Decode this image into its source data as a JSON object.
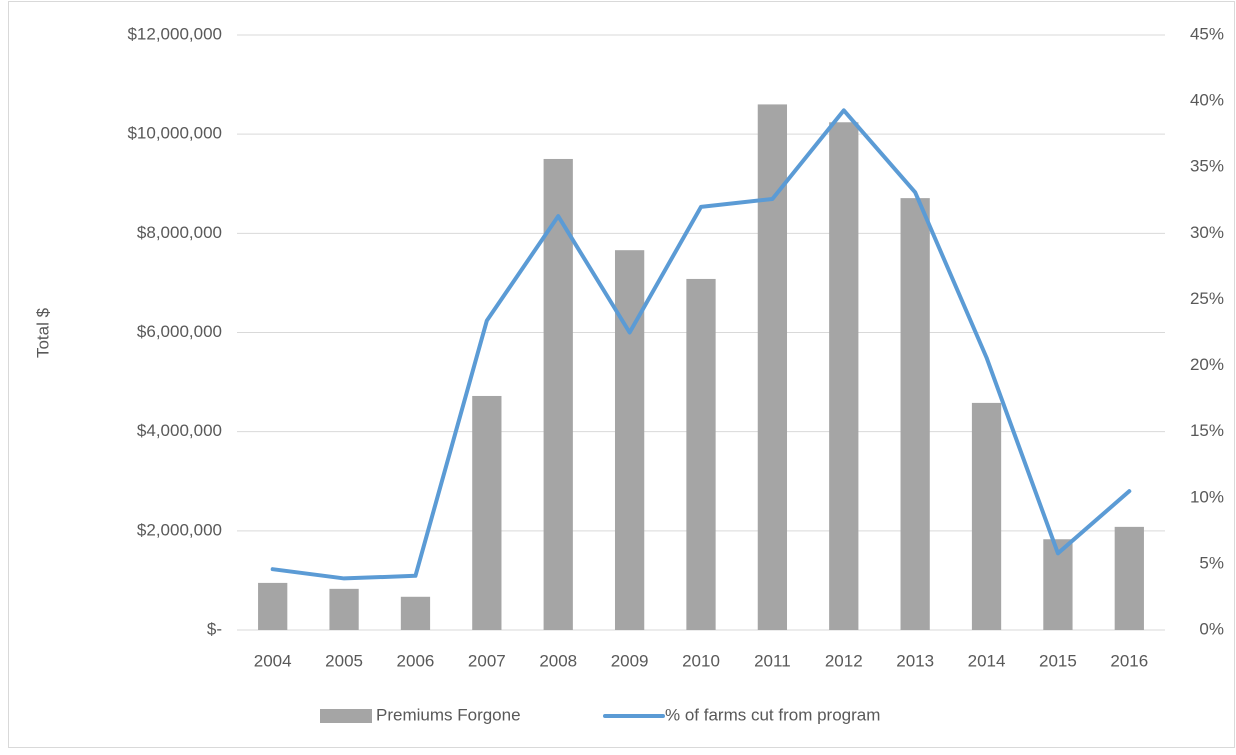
{
  "chart_data": {
    "type": "bar-line",
    "y_axis_label": "Total $",
    "categories": [
      "2004",
      "2005",
      "2006",
      "2007",
      "2008",
      "2009",
      "2010",
      "2011",
      "2012",
      "2013",
      "2014",
      "2015",
      "2016"
    ],
    "series": [
      {
        "name": "Premiums Forgone",
        "type": "bar",
        "color": "#a5a5a5",
        "values": [
          950000,
          830000,
          670000,
          4720000,
          9500000,
          7660000,
          7080000,
          10600000,
          10240000,
          8710000,
          4580000,
          1830000,
          2080000
        ]
      },
      {
        "name": "% of farms cut from program",
        "type": "line",
        "axis": "y2",
        "color": "#5b9bd5",
        "values": [
          4.6,
          3.9,
          4.1,
          23.4,
          31.3,
          22.5,
          32.0,
          32.6,
          39.3,
          33.1,
          20.6,
          5.8,
          10.5
        ]
      }
    ],
    "ylim": [
      0,
      12000000
    ],
    "yticks": [
      {
        "value": 0,
        "label": "$-"
      },
      {
        "value": 2000000,
        "label": "$2,000,000"
      },
      {
        "value": 4000000,
        "label": "$4,000,000"
      },
      {
        "value": 6000000,
        "label": "$6,000,000"
      },
      {
        "value": 8000000,
        "label": "$8,000,000"
      },
      {
        "value": 10000000,
        "label": "$10,000,000"
      },
      {
        "value": 12000000,
        "label": "$12,000,000"
      }
    ],
    "y2lim": [
      0,
      45
    ],
    "y2ticks": [
      {
        "value": 0,
        "label": "0%"
      },
      {
        "value": 5,
        "label": "5%"
      },
      {
        "value": 10,
        "label": "10%"
      },
      {
        "value": 15,
        "label": "15%"
      },
      {
        "value": 20,
        "label": "20%"
      },
      {
        "value": 25,
        "label": "25%"
      },
      {
        "value": 30,
        "label": "30%"
      },
      {
        "value": 35,
        "label": "35%"
      },
      {
        "value": 40,
        "label": "40%"
      },
      {
        "value": 45,
        "label": "45%"
      }
    ],
    "grid": true,
    "legend": "bottom"
  }
}
